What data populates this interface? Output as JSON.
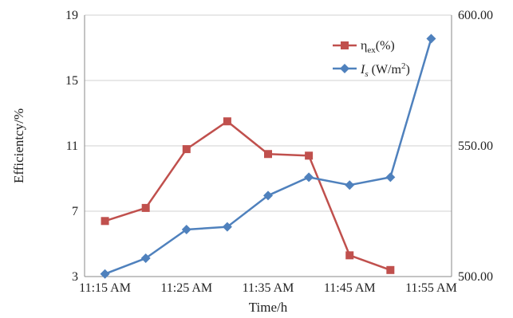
{
  "chart_data": {
    "type": "line",
    "categories": [
      "11:15 AM",
      "11:20 AM",
      "11:25 AM",
      "11:30 AM",
      "11:35 AM",
      "11:40 AM",
      "11:45 AM",
      "11:50 AM",
      "11:55 AM"
    ],
    "x_tick_labels": [
      "11:15 AM",
      "11:25 AM",
      "11:35 AM",
      "11:45 AM",
      "11:55 AM"
    ],
    "xlabel": "Time/h",
    "ylabel": "Efficientcy/%",
    "ylim": [
      3,
      19
    ],
    "y_ticks": [
      "3",
      "7",
      "11",
      "15",
      "19"
    ],
    "y2lim": [
      500,
      600
    ],
    "y2_ticks": [
      "500.00",
      "550.00",
      "600.00"
    ],
    "grid": true,
    "legend_position": "top-right",
    "series": [
      {
        "name": "η_ex(%)",
        "axis": "left",
        "color": "#c0504d",
        "marker": "square",
        "values": [
          6.4,
          7.2,
          10.8,
          12.5,
          10.5,
          10.4,
          4.3,
          3.4,
          null
        ]
      },
      {
        "name": "I_s (W/m²)",
        "axis": "right",
        "color": "#4f81bd",
        "marker": "diamond",
        "values": [
          501,
          507,
          518,
          519,
          531,
          538,
          535,
          538,
          591
        ]
      }
    ]
  }
}
